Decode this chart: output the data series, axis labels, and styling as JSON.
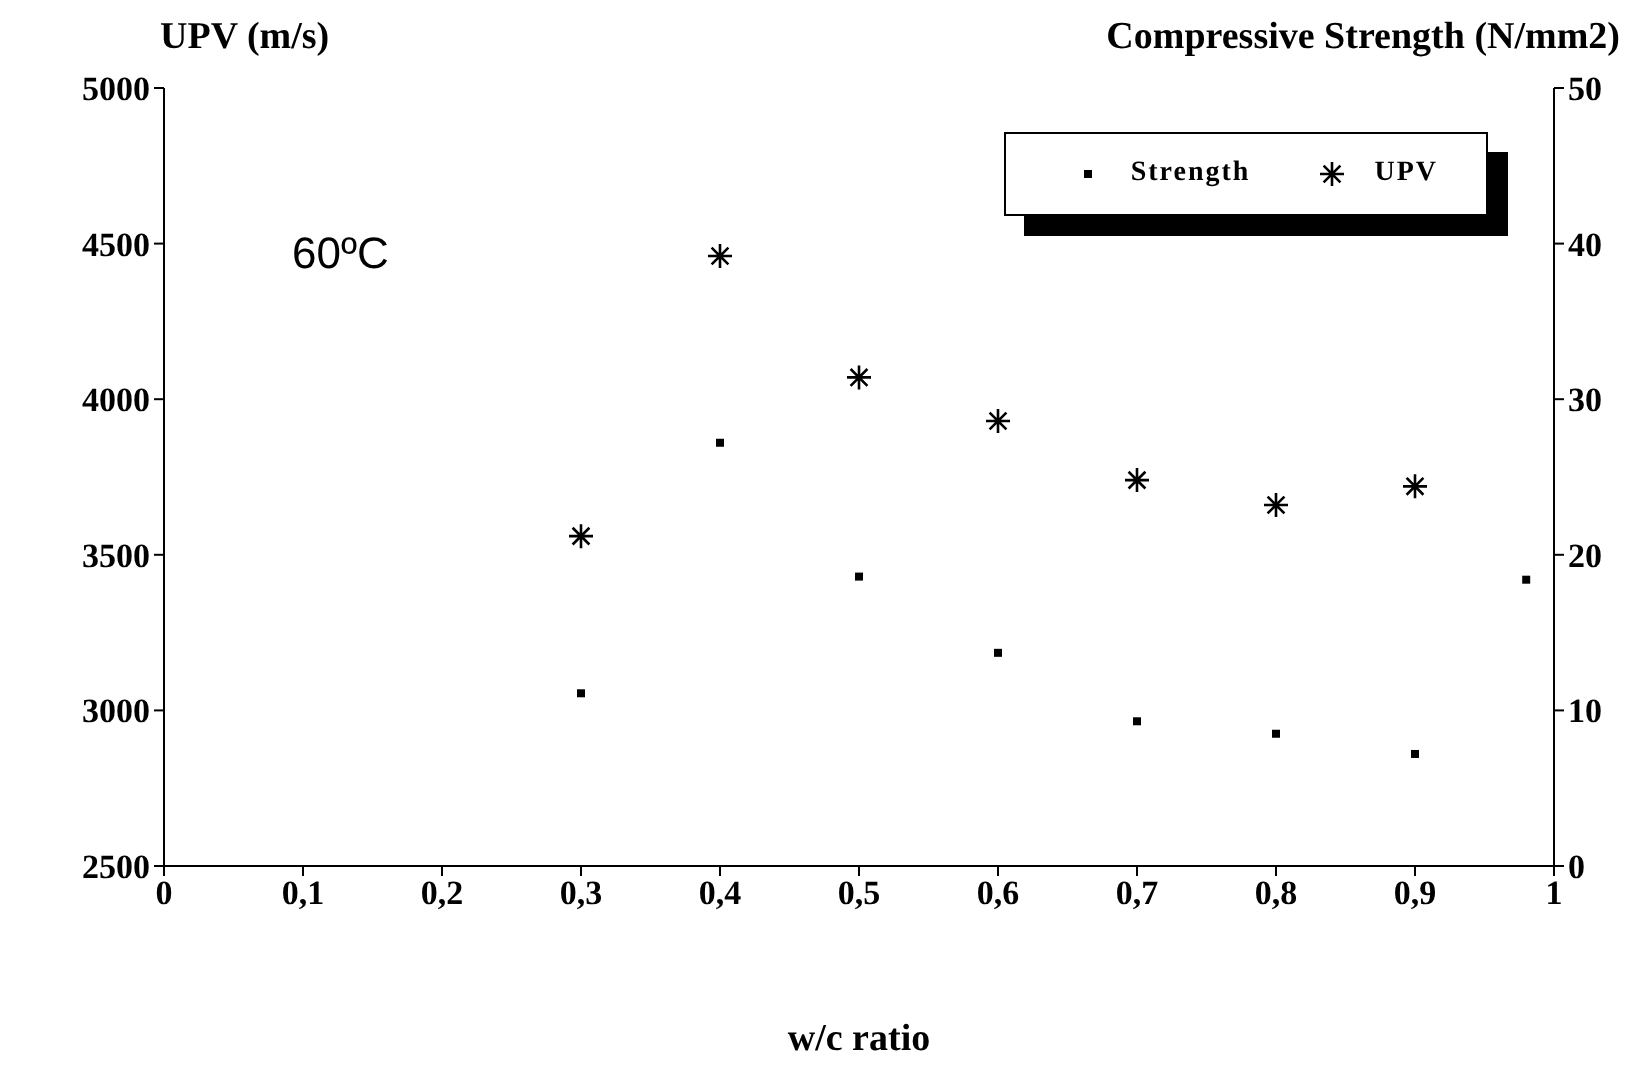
{
  "chart_data": {
    "type": "scatter",
    "ylabel": "UPV (m/s)",
    "y2label": "Compressive Strength (N/mm2)",
    "xlabel": "w/c ratio",
    "annotations": [
      "60ºC"
    ],
    "legend": "top right",
    "xlim": [
      0,
      1
    ],
    "xticks": [
      0,
      {
        "value": 0.1,
        "label": "0,1"
      },
      {
        "value": 0.2,
        "label": "0,2"
      },
      {
        "value": 0.3,
        "label": "0,3"
      },
      {
        "value": 0.4,
        "label": "0,4"
      },
      {
        "value": 0.5,
        "label": "0,5"
      },
      {
        "value": 0.6,
        "label": "0,6"
      },
      {
        "value": 0.7,
        "label": "0,7"
      },
      {
        "value": 0.8,
        "label": "0,8"
      },
      {
        "value": 0.9,
        "label": "0,9"
      },
      1
    ],
    "ylim": [
      2500,
      5000
    ],
    "yticks": [
      2500,
      3000,
      3500,
      4000,
      4500,
      5000
    ],
    "y2lim": [
      0,
      50
    ],
    "y2ticks": [
      0,
      10,
      20,
      30,
      40,
      50
    ],
    "series": [
      {
        "name": "Strength",
        "color": "#000000",
        "marker": "square",
        "axis": "y2",
        "x": [
          0.3,
          0.4,
          0.5,
          0.6,
          0.7,
          0.8,
          0.9,
          0.98
        ],
        "values": [
          11.1,
          27.2,
          18.6,
          13.7,
          9.3,
          8.5,
          7.2,
          18.4
        ]
      },
      {
        "name": "UPV",
        "color": "#000000",
        "marker": "cross",
        "x": [
          0.3,
          0.4,
          0.5,
          0.6,
          0.7,
          0.8,
          0.9
        ],
        "values": [
          3560,
          4460,
          4070,
          3930,
          3740,
          3660,
          3720
        ]
      }
    ]
  }
}
